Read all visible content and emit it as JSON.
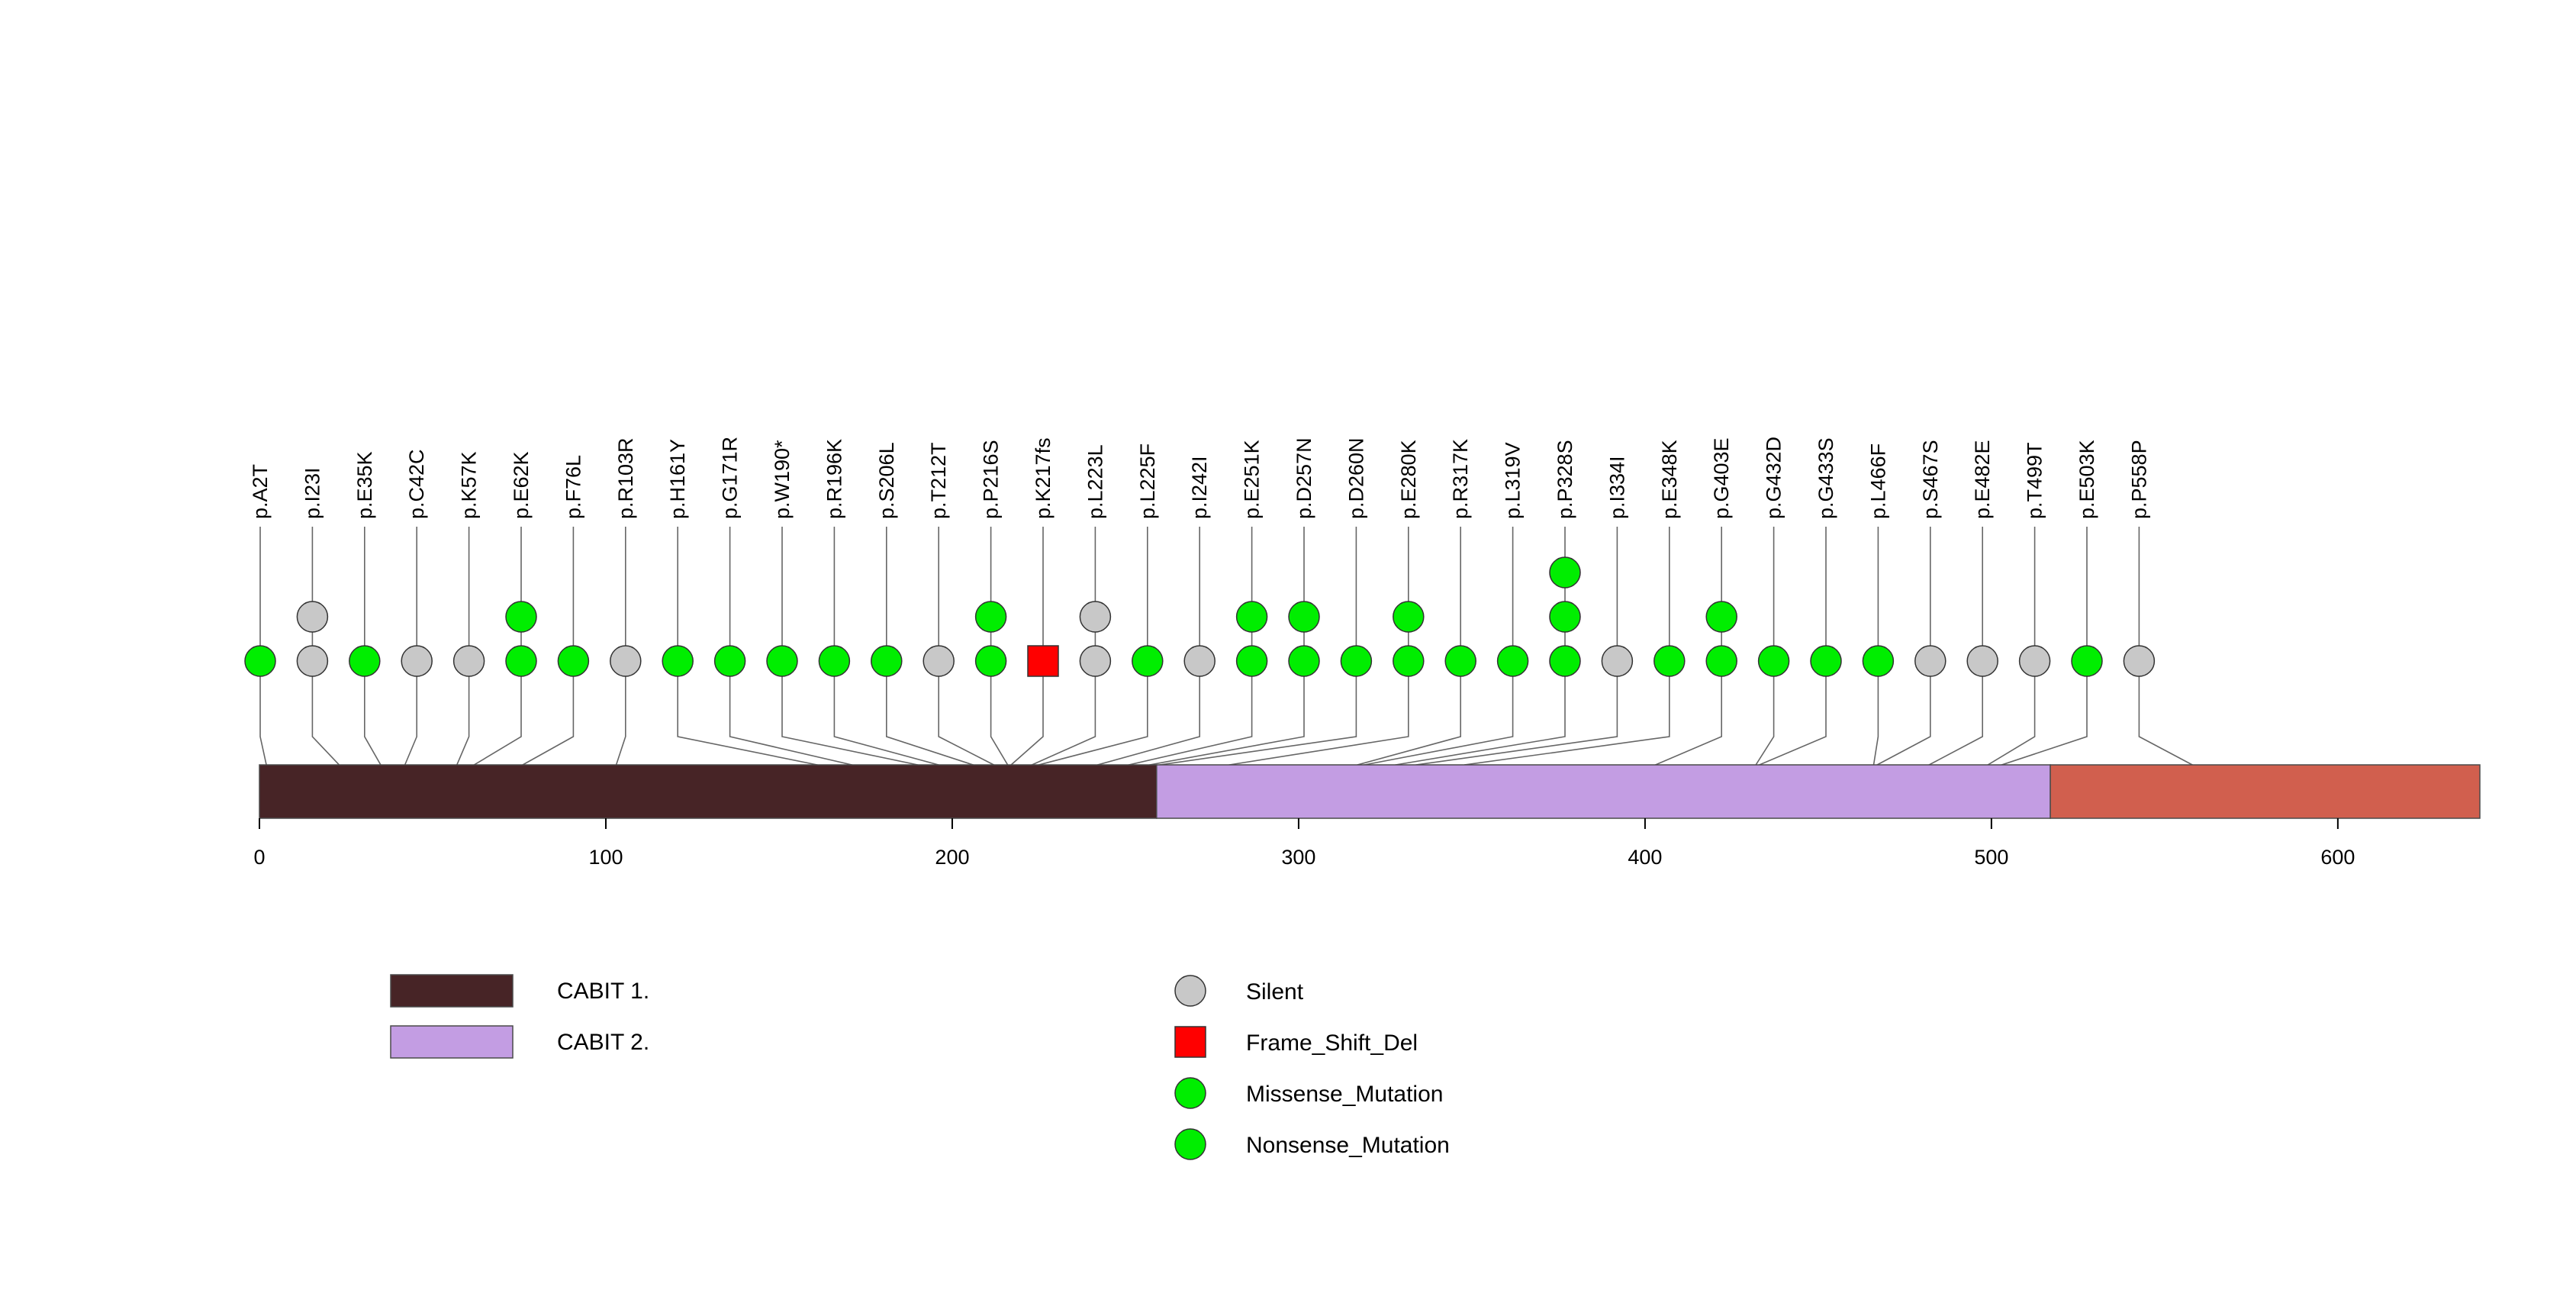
{
  "chart_data": {
    "type": "lollipop",
    "protein_length": 641,
    "axis": {
      "xlim": [
        0,
        641
      ],
      "ticks": [
        0,
        100,
        200,
        300,
        400,
        500,
        600
      ]
    },
    "domains": [
      {
        "name": "CABIT 1.",
        "start": 0,
        "end": 259,
        "color": "#472426"
      },
      {
        "name": "CABIT 2.",
        "start": 259,
        "end": 517,
        "color": "#c39de3"
      },
      {
        "name": "",
        "start": 517,
        "end": 641,
        "color": "#d15f4e"
      }
    ],
    "mutation_types": {
      "Silent": "#c8c8c8",
      "Frame_Shift_Del": "#ff0000",
      "Missense_Mutation": "#00ee00",
      "Nonsense_Mutation": "#00ee00"
    },
    "mutations": [
      {
        "label": "p.A2T",
        "pos": 2,
        "types": [
          "Missense_Mutation"
        ]
      },
      {
        "label": "p.I23I",
        "pos": 23,
        "types": [
          "Silent",
          "Silent"
        ]
      },
      {
        "label": "p.E35K",
        "pos": 35,
        "types": [
          "Missense_Mutation"
        ]
      },
      {
        "label": "p.C42C",
        "pos": 42,
        "types": [
          "Silent"
        ]
      },
      {
        "label": "p.K57K",
        "pos": 57,
        "types": [
          "Silent"
        ]
      },
      {
        "label": "p.E62K",
        "pos": 62,
        "types": [
          "Missense_Mutation",
          "Missense_Mutation"
        ]
      },
      {
        "label": "p.F76L",
        "pos": 76,
        "types": [
          "Missense_Mutation"
        ]
      },
      {
        "label": "p.R103R",
        "pos": 103,
        "types": [
          "Silent"
        ]
      },
      {
        "label": "p.H161Y",
        "pos": 161,
        "types": [
          "Missense_Mutation"
        ]
      },
      {
        "label": "p.G171R",
        "pos": 171,
        "types": [
          "Missense_Mutation"
        ]
      },
      {
        "label": "p.W190*",
        "pos": 190,
        "types": [
          "Nonsense_Mutation"
        ]
      },
      {
        "label": "p.R196K",
        "pos": 196,
        "types": [
          "Missense_Mutation"
        ]
      },
      {
        "label": "p.S206L",
        "pos": 206,
        "types": [
          "Missense_Mutation"
        ]
      },
      {
        "label": "p.T212T",
        "pos": 212,
        "types": [
          "Silent"
        ]
      },
      {
        "label": "p.P216S",
        "pos": 216,
        "types": [
          "Missense_Mutation",
          "Missense_Mutation"
        ]
      },
      {
        "label": "p.K217fs",
        "pos": 217,
        "types": [
          "Frame_Shift_Del"
        ]
      },
      {
        "label": "p.L223L",
        "pos": 223,
        "types": [
          "Silent",
          "Silent"
        ]
      },
      {
        "label": "p.L225F",
        "pos": 225,
        "types": [
          "Missense_Mutation"
        ]
      },
      {
        "label": "p.I242I",
        "pos": 242,
        "types": [
          "Silent"
        ]
      },
      {
        "label": "p.E251K",
        "pos": 251,
        "types": [
          "Missense_Mutation",
          "Missense_Mutation"
        ]
      },
      {
        "label": "p.D257N",
        "pos": 257,
        "types": [
          "Missense_Mutation",
          "Missense_Mutation"
        ]
      },
      {
        "label": "p.D260N",
        "pos": 260,
        "types": [
          "Missense_Mutation"
        ]
      },
      {
        "label": "p.E280K",
        "pos": 280,
        "types": [
          "Missense_Mutation",
          "Missense_Mutation"
        ]
      },
      {
        "label": "p.R317K",
        "pos": 317,
        "types": [
          "Missense_Mutation"
        ]
      },
      {
        "label": "p.L319V",
        "pos": 319,
        "types": [
          "Missense_Mutation"
        ]
      },
      {
        "label": "p.P328S",
        "pos": 328,
        "types": [
          "Missense_Mutation",
          "Missense_Mutation",
          "Missense_Mutation"
        ]
      },
      {
        "label": "p.I334I",
        "pos": 334,
        "types": [
          "Silent"
        ]
      },
      {
        "label": "p.E348K",
        "pos": 348,
        "types": [
          "Missense_Mutation"
        ]
      },
      {
        "label": "p.G403E",
        "pos": 403,
        "types": [
          "Missense_Mutation",
          "Missense_Mutation"
        ]
      },
      {
        "label": "p.G432D",
        "pos": 432,
        "types": [
          "Missense_Mutation"
        ]
      },
      {
        "label": "p.G433S",
        "pos": 433,
        "types": [
          "Missense_Mutation"
        ]
      },
      {
        "label": "p.L466F",
        "pos": 466,
        "types": [
          "Missense_Mutation"
        ]
      },
      {
        "label": "p.S467S",
        "pos": 467,
        "types": [
          "Silent"
        ]
      },
      {
        "label": "p.E482E",
        "pos": 482,
        "types": [
          "Silent"
        ]
      },
      {
        "label": "p.T499T",
        "pos": 499,
        "types": [
          "Silent"
        ]
      },
      {
        "label": "p.E503K",
        "pos": 503,
        "types": [
          "Missense_Mutation"
        ]
      },
      {
        "label": "p.P558P",
        "pos": 558,
        "types": [
          "Silent"
        ]
      }
    ],
    "legend": {
      "domains": [
        "CABIT 1.",
        "CABIT 2."
      ],
      "mutation_types": [
        "Silent",
        "Frame_Shift_Del",
        "Missense_Mutation",
        "Nonsense_Mutation"
      ]
    }
  }
}
